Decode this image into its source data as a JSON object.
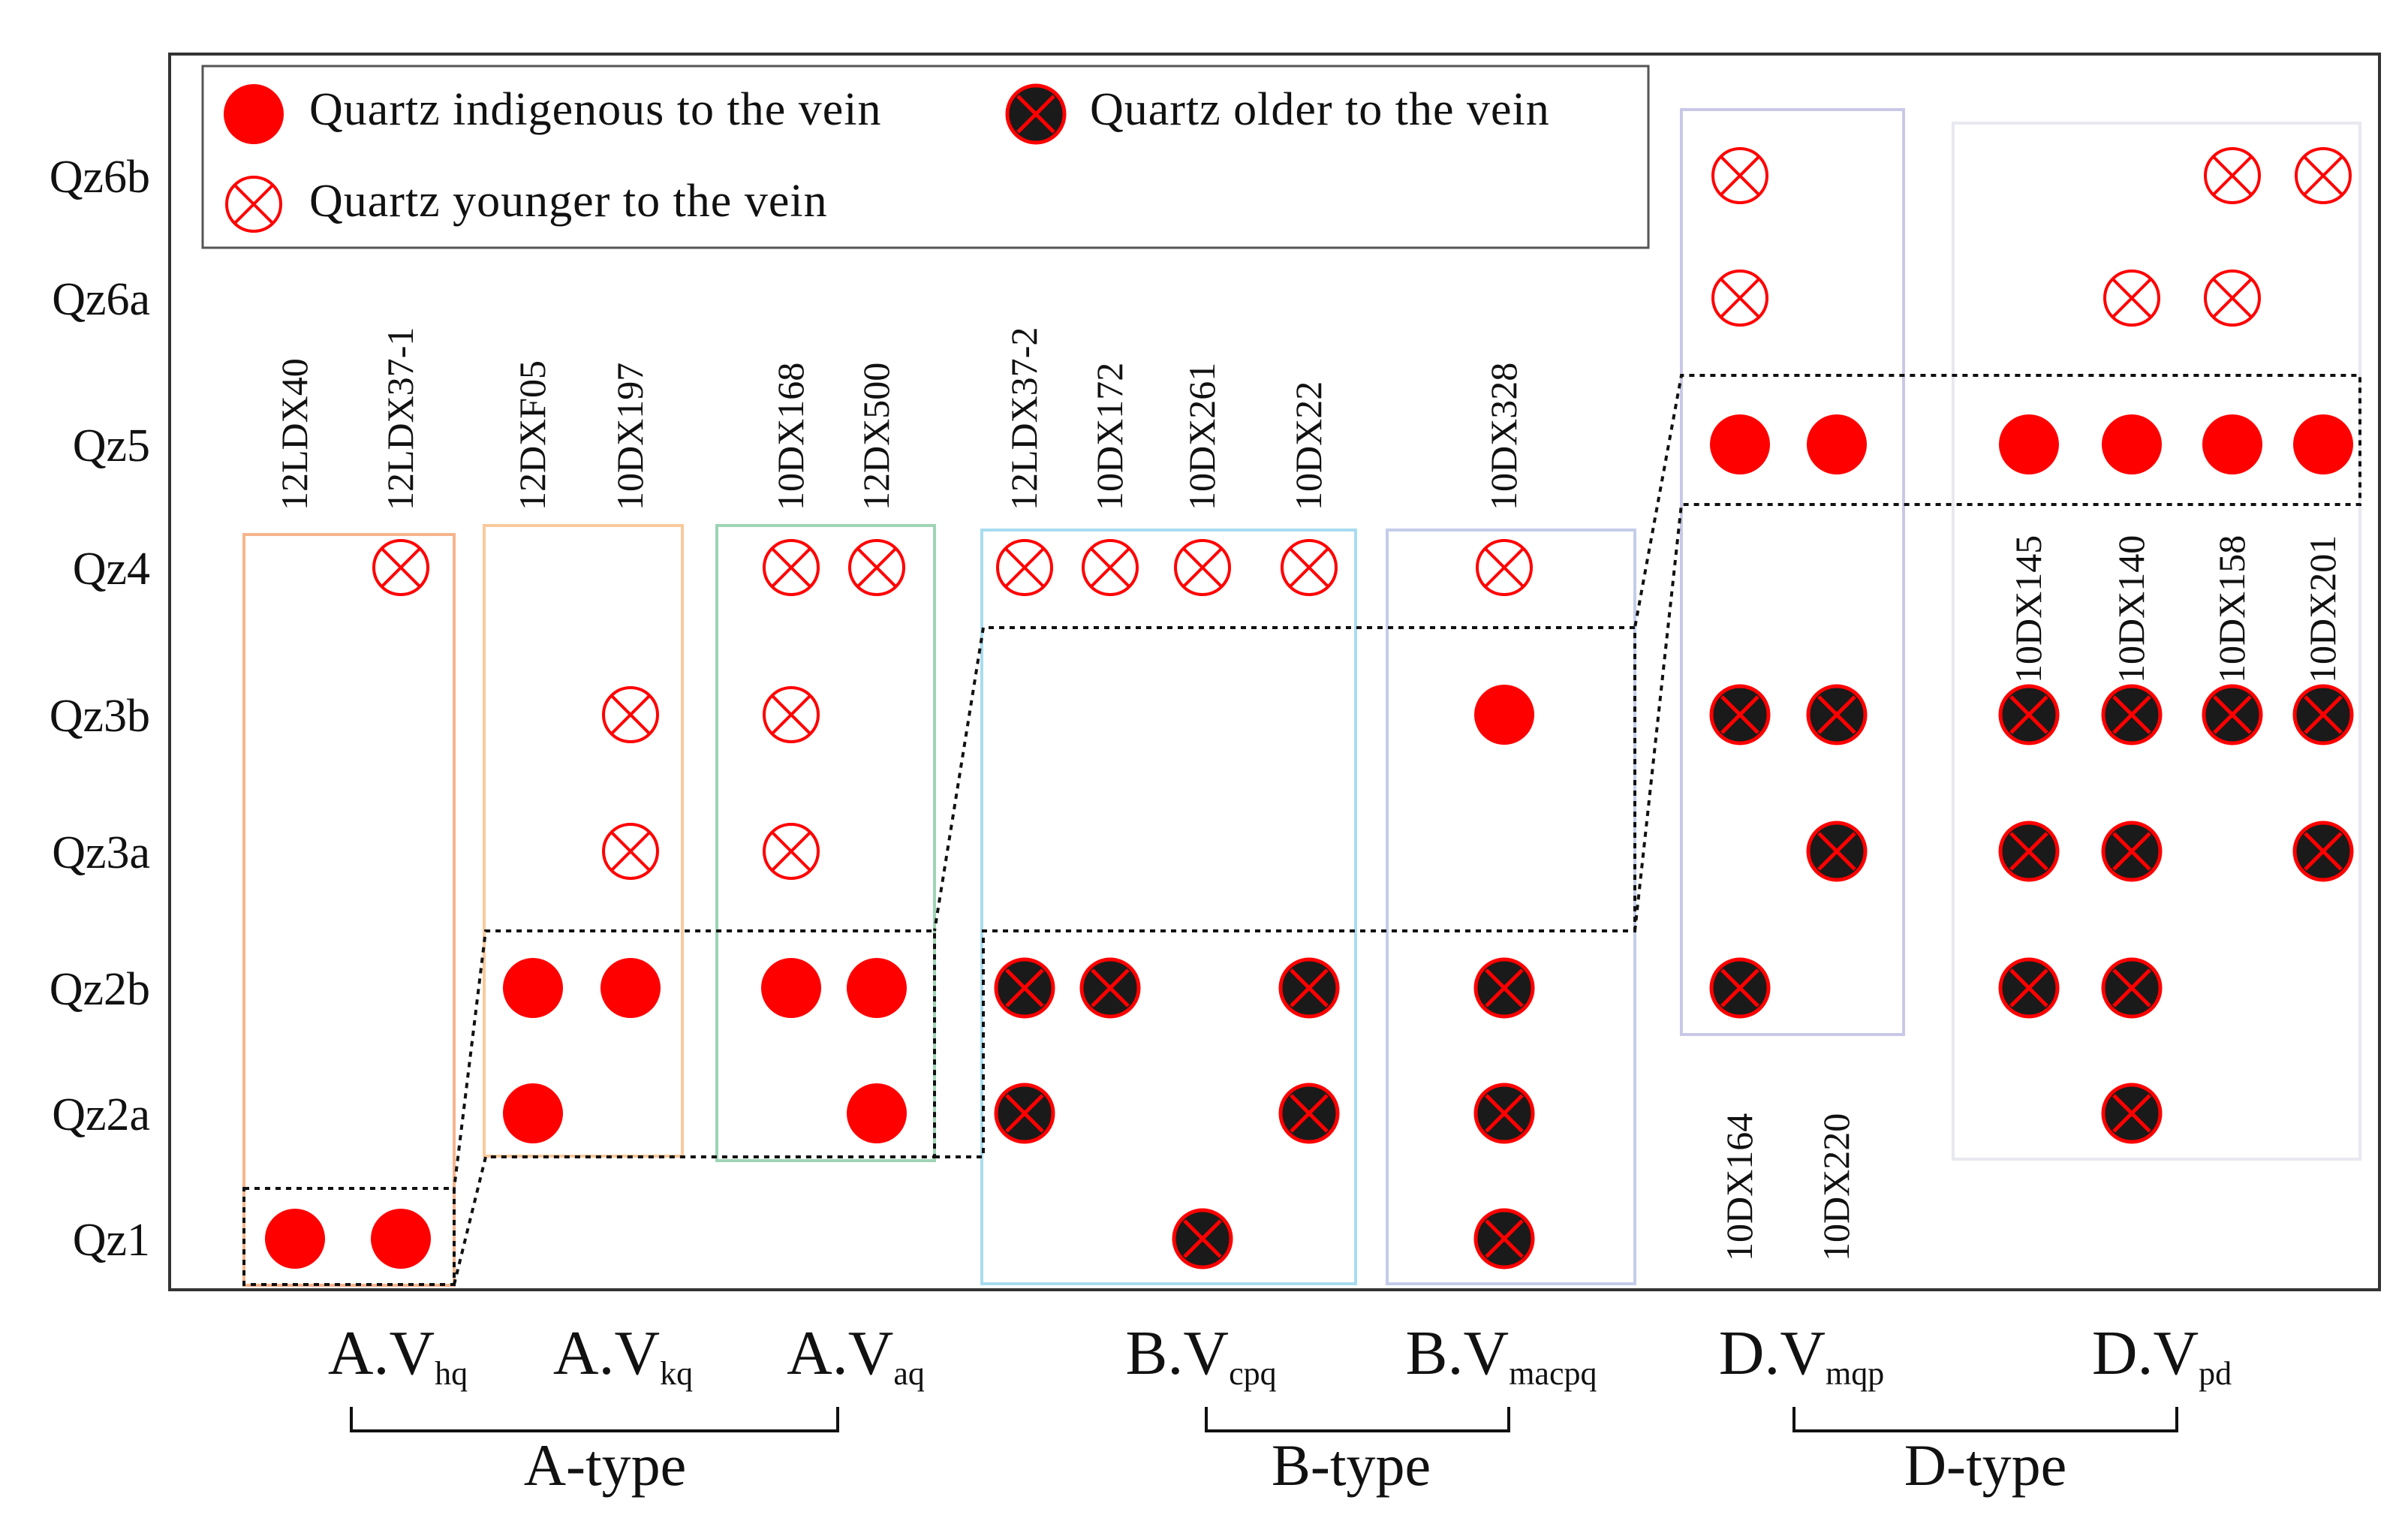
{
  "chart_data": {
    "type": "scatter",
    "title": "",
    "colors": {
      "indigenous": "#ff0000",
      "older_fill": "#1a1a1a",
      "older_ring": "#ff0000",
      "younger": "#ff0000",
      "frame": "#333333"
    },
    "legend": {
      "placement": "top-left",
      "items": [
        {
          "symbol": "indigenous",
          "label": "Quartz indigenous to the vein"
        },
        {
          "symbol": "older",
          "label": "Quartz older to the vein"
        },
        {
          "symbol": "younger",
          "label": "Quartz younger to the vein"
        }
      ]
    },
    "stages": [
      "Qz1",
      "Qz2a",
      "Qz2b",
      "Qz3a",
      "Qz3b",
      "Qz4",
      "Qz5",
      "Qz6a",
      "Qz6b"
    ],
    "vein_groups": [
      {
        "prefix": "A.V",
        "sub": "hq",
        "box_color": "#f6b48c",
        "samples": [
          {
            "name": "12LDX40",
            "points": {
              "Qz1": "indigenous"
            }
          },
          {
            "name": "12LDX37-1",
            "points": {
              "Qz1": "indigenous",
              "Qz4": "younger"
            }
          }
        ]
      },
      {
        "prefix": "A.V",
        "sub": "kq",
        "box_color": "#f9c99c",
        "samples": [
          {
            "name": "12DXF05",
            "points": {
              "Qz2a": "indigenous",
              "Qz2b": "indigenous"
            }
          },
          {
            "name": "10DX197",
            "points": {
              "Qz2b": "indigenous",
              "Qz3a": "younger",
              "Qz3b": "younger"
            }
          }
        ]
      },
      {
        "prefix": "A.V",
        "sub": "aq",
        "box_color": "#9ed4b4",
        "samples": [
          {
            "name": "10DX168",
            "points": {
              "Qz2b": "indigenous",
              "Qz3a": "younger",
              "Qz3b": "younger",
              "Qz4": "younger"
            }
          },
          {
            "name": "12DX500",
            "points": {
              "Qz2a": "indigenous",
              "Qz2b": "indigenous",
              "Qz4": "younger"
            }
          }
        ]
      },
      {
        "prefix": "B.V",
        "sub": "cpq",
        "box_color": "#a9dcf0",
        "samples": [
          {
            "name": "12LDX37-2",
            "points": {
              "Qz2a": "older",
              "Qz2b": "older",
              "Qz4": "younger"
            }
          },
          {
            "name": "10DX172",
            "points": {
              "Qz2b": "older",
              "Qz4": "younger"
            }
          },
          {
            "name": "10DX261",
            "points": {
              "Qz1": "older",
              "Qz4": "younger"
            }
          },
          {
            "name": "10DX22",
            "points": {
              "Qz2a": "older",
              "Qz2b": "older",
              "Qz4": "younger"
            }
          }
        ]
      },
      {
        "prefix": "B.V",
        "sub": "macpq",
        "box_color": "#c4cdea",
        "samples": [
          {
            "name": "10DX328",
            "points": {
              "Qz1": "older",
              "Qz2a": "older",
              "Qz2b": "older",
              "Qz3b": "indigenous",
              "Qz4": "younger"
            }
          }
        ]
      },
      {
        "prefix": "D.V",
        "sub": "mqp",
        "box_color": "#c9c9e6",
        "samples": [
          {
            "name": "10DX164",
            "points": {
              "Qz2b": "older",
              "Qz3b": "older",
              "Qz5": "indigenous",
              "Qz6a": "younger",
              "Qz6b": "younger"
            }
          },
          {
            "name": "10DX220",
            "points": {
              "Qz3a": "older",
              "Qz3b": "older",
              "Qz5": "indigenous"
            }
          }
        ]
      },
      {
        "prefix": "D.V",
        "sub": "pd",
        "box_color": "#e8e8f0",
        "samples": [
          {
            "name": "10DX145",
            "points": {
              "Qz2b": "older",
              "Qz3a": "older",
              "Qz3b": "older",
              "Qz5": "indigenous"
            }
          },
          {
            "name": "10DX140",
            "points": {
              "Qz2a": "older",
              "Qz2b": "older",
              "Qz3a": "older",
              "Qz3b": "older",
              "Qz5": "indigenous",
              "Qz6a": "younger"
            }
          },
          {
            "name": "10DX158",
            "points": {
              "Qz3b": "older",
              "Qz5": "indigenous",
              "Qz6a": "younger",
              "Qz6b": "younger"
            }
          },
          {
            "name": "10DX201",
            "points": {
              "Qz3a": "older",
              "Qz3b": "older",
              "Qz5": "indigenous",
              "Qz6b": "younger"
            }
          }
        ]
      }
    ],
    "types": [
      "A-type",
      "B-type",
      "D-type"
    ],
    "indigenous_windows": [
      {
        "group": "A.Vhq",
        "from": "Qz1",
        "to": "Qz1"
      },
      {
        "group": "A.Vkq",
        "from": "Qz2a",
        "to": "Qz2b"
      },
      {
        "group": "A.Vaq",
        "from": "Qz2a",
        "to": "Qz2b"
      },
      {
        "group": "B.Vcpq",
        "from": "Qz3a",
        "to": "Qz3b"
      },
      {
        "group": "B.Vmacpq",
        "from": "Qz3a",
        "to": "Qz3b"
      },
      {
        "group": "D.Vmqp",
        "from": "Qz5",
        "to": "Qz5"
      },
      {
        "group": "D.Vpd",
        "from": "Qz5",
        "to": "Qz5"
      }
    ]
  }
}
